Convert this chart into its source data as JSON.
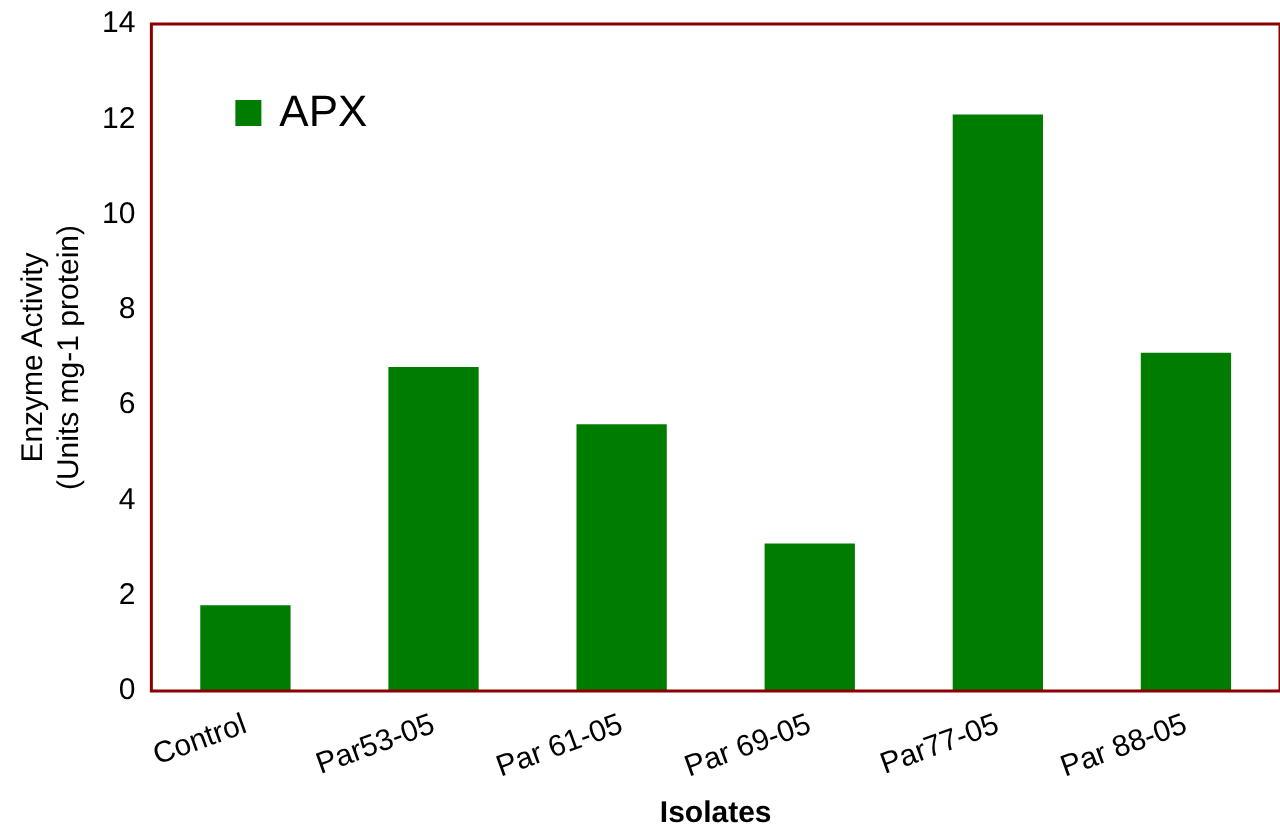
{
  "chart_data": {
    "type": "bar",
    "xlabel": "Isolates",
    "ylabel": [
      "Enzyme Activity",
      "(Units mg-1 protein)"
    ],
    "categories": [
      "Control",
      "Par53-05",
      "Par 61-05",
      "Par 69-05",
      "Par77-05",
      "Par 88-05"
    ],
    "series": [
      {
        "name": "APX",
        "color": "#007c00",
        "values": [
          1.8,
          6.8,
          5.6,
          3.1,
          12.1,
          7.1
        ]
      }
    ],
    "ylim": [
      0,
      14
    ],
    "yticks": [
      0,
      2,
      4,
      6,
      8,
      10,
      12,
      14
    ],
    "grid": false,
    "legend": "top left"
  }
}
